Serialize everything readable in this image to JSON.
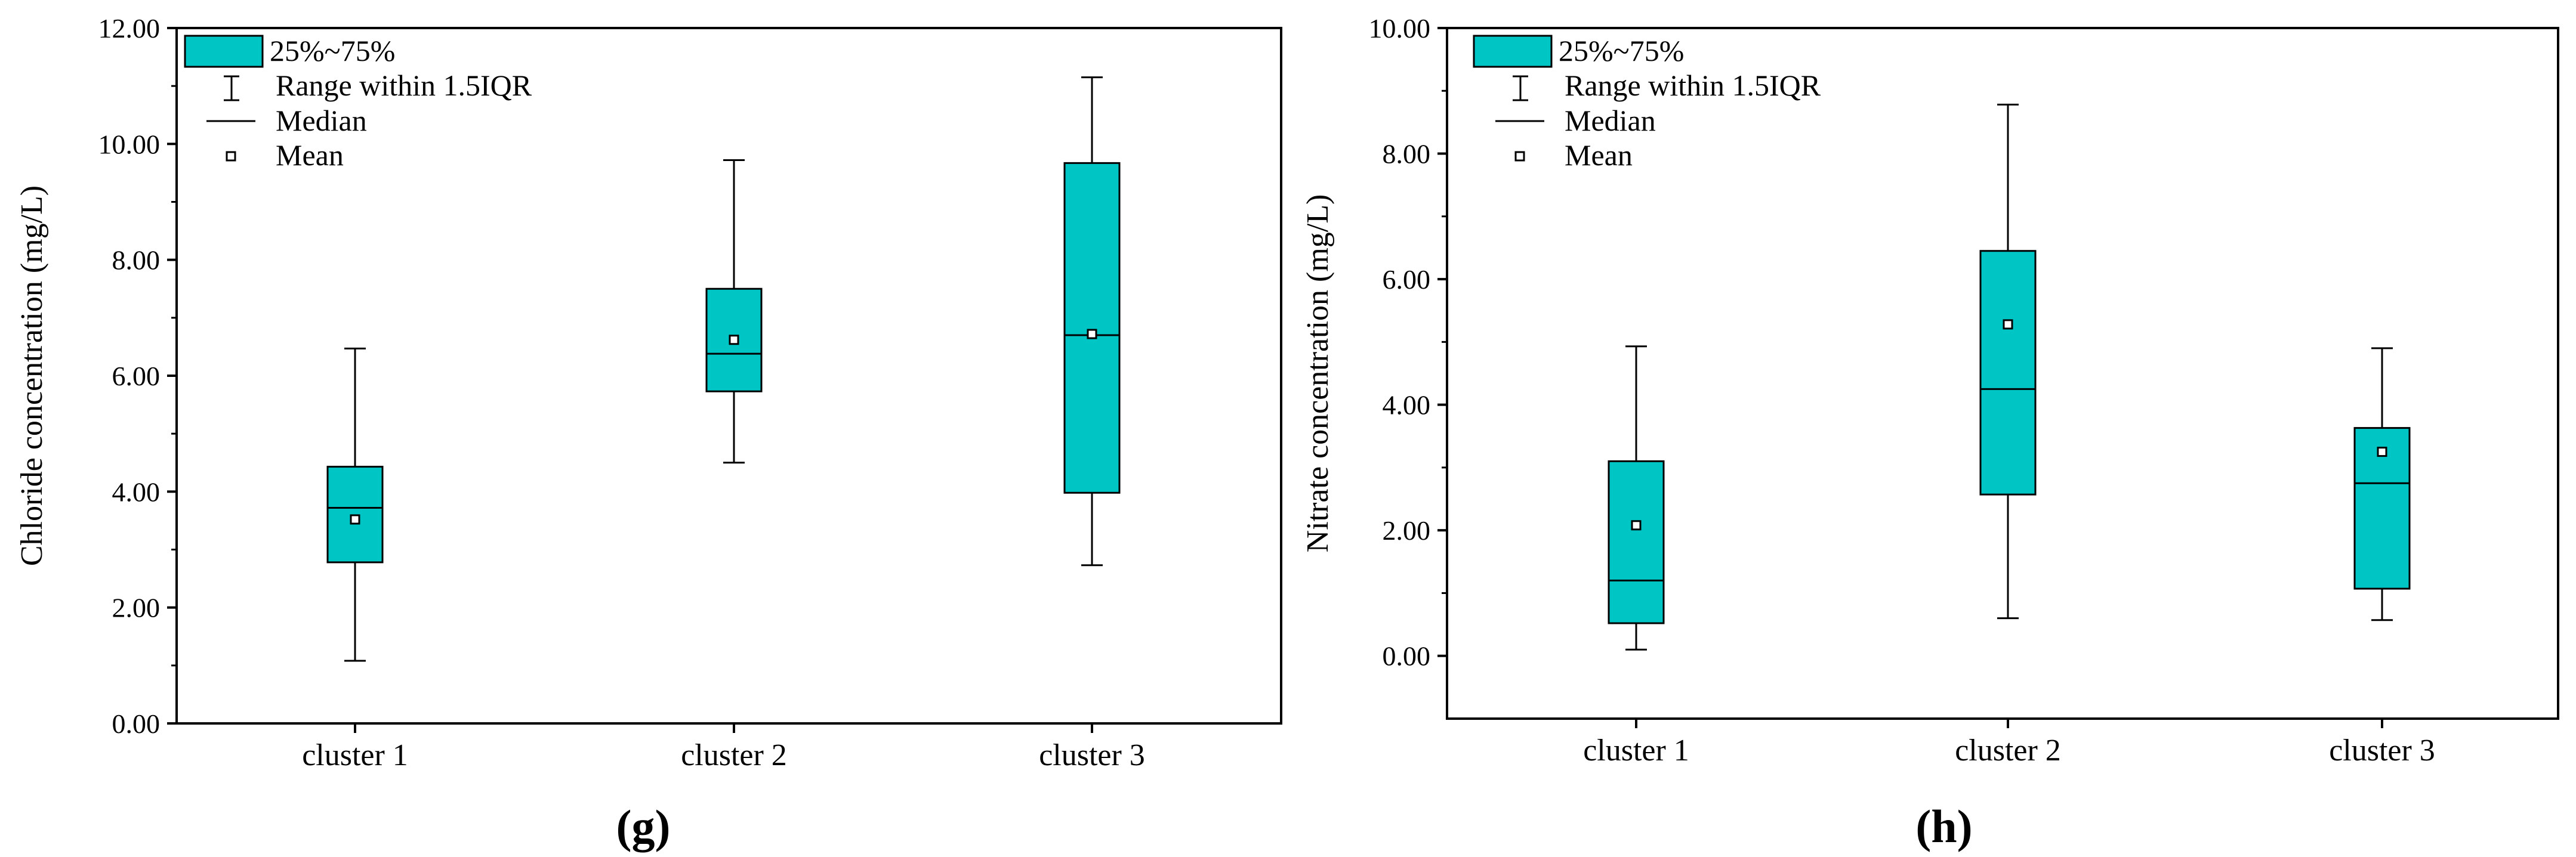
{
  "chart_data": [
    {
      "type": "box",
      "panel_label": "g",
      "title": "",
      "xlabel": "",
      "ylabel": "Chloride concentration (mg/L)",
      "ylim": [
        0,
        12
      ],
      "yticks": [
        "0.00",
        "2.00",
        "4.00",
        "6.00",
        "8.00",
        "10.00",
        "12.00"
      ],
      "ytick_values": [
        0,
        2,
        4,
        6,
        8,
        10,
        12
      ],
      "categories": [
        "cluster 1",
        "cluster 2",
        "cluster 3"
      ],
      "box_color": "#00C5C5",
      "legend_position": "top-left",
      "legend": {
        "box": "25%~75%",
        "range": "Range within 1.5IQR",
        "median": "Median",
        "mean": "Mean"
      },
      "boxes": [
        {
          "category": "cluster 1",
          "whisker_low": 1.08,
          "q1": 2.78,
          "median": 3.72,
          "q3": 4.43,
          "whisker_high": 6.47,
          "mean": 3.52
        },
        {
          "category": "cluster 2",
          "whisker_low": 4.5,
          "q1": 5.73,
          "median": 6.38,
          "q3": 7.5,
          "whisker_high": 9.72,
          "mean": 6.62
        },
        {
          "category": "cluster 3",
          "whisker_low": 2.73,
          "q1": 3.98,
          "median": 6.7,
          "q3": 9.67,
          "whisker_high": 11.15,
          "mean": 6.72
        }
      ]
    },
    {
      "type": "box",
      "panel_label": "h",
      "title": "",
      "xlabel": "",
      "ylabel": "Nitrate concentration (mg/L)",
      "ylim": [
        -1,
        10
      ],
      "yticks": [
        "0.00",
        "2.00",
        "4.00",
        "6.00",
        "8.00",
        "10.00"
      ],
      "ytick_values": [
        0,
        2,
        4,
        6,
        8,
        10
      ],
      "categories": [
        "cluster 1",
        "cluster 2",
        "cluster 3"
      ],
      "box_color": "#00C5C5",
      "legend_position": "top-left",
      "legend": {
        "box": "25%~75%",
        "range": "Range within 1.5IQR",
        "median": "Median",
        "mean": "Mean"
      },
      "boxes": [
        {
          "category": "cluster 1",
          "whisker_low": 0.1,
          "q1": 0.52,
          "median": 1.2,
          "q3": 3.1,
          "whisker_high": 4.93,
          "mean": 2.08
        },
        {
          "category": "cluster 2",
          "whisker_low": 0.6,
          "q1": 2.57,
          "median": 4.25,
          "q3": 6.45,
          "whisker_high": 8.78,
          "mean": 5.28
        },
        {
          "category": "cluster 3",
          "whisker_low": 0.57,
          "q1": 1.07,
          "median": 2.75,
          "q3": 3.63,
          "whisker_high": 4.9,
          "mean": 3.25
        }
      ]
    }
  ]
}
